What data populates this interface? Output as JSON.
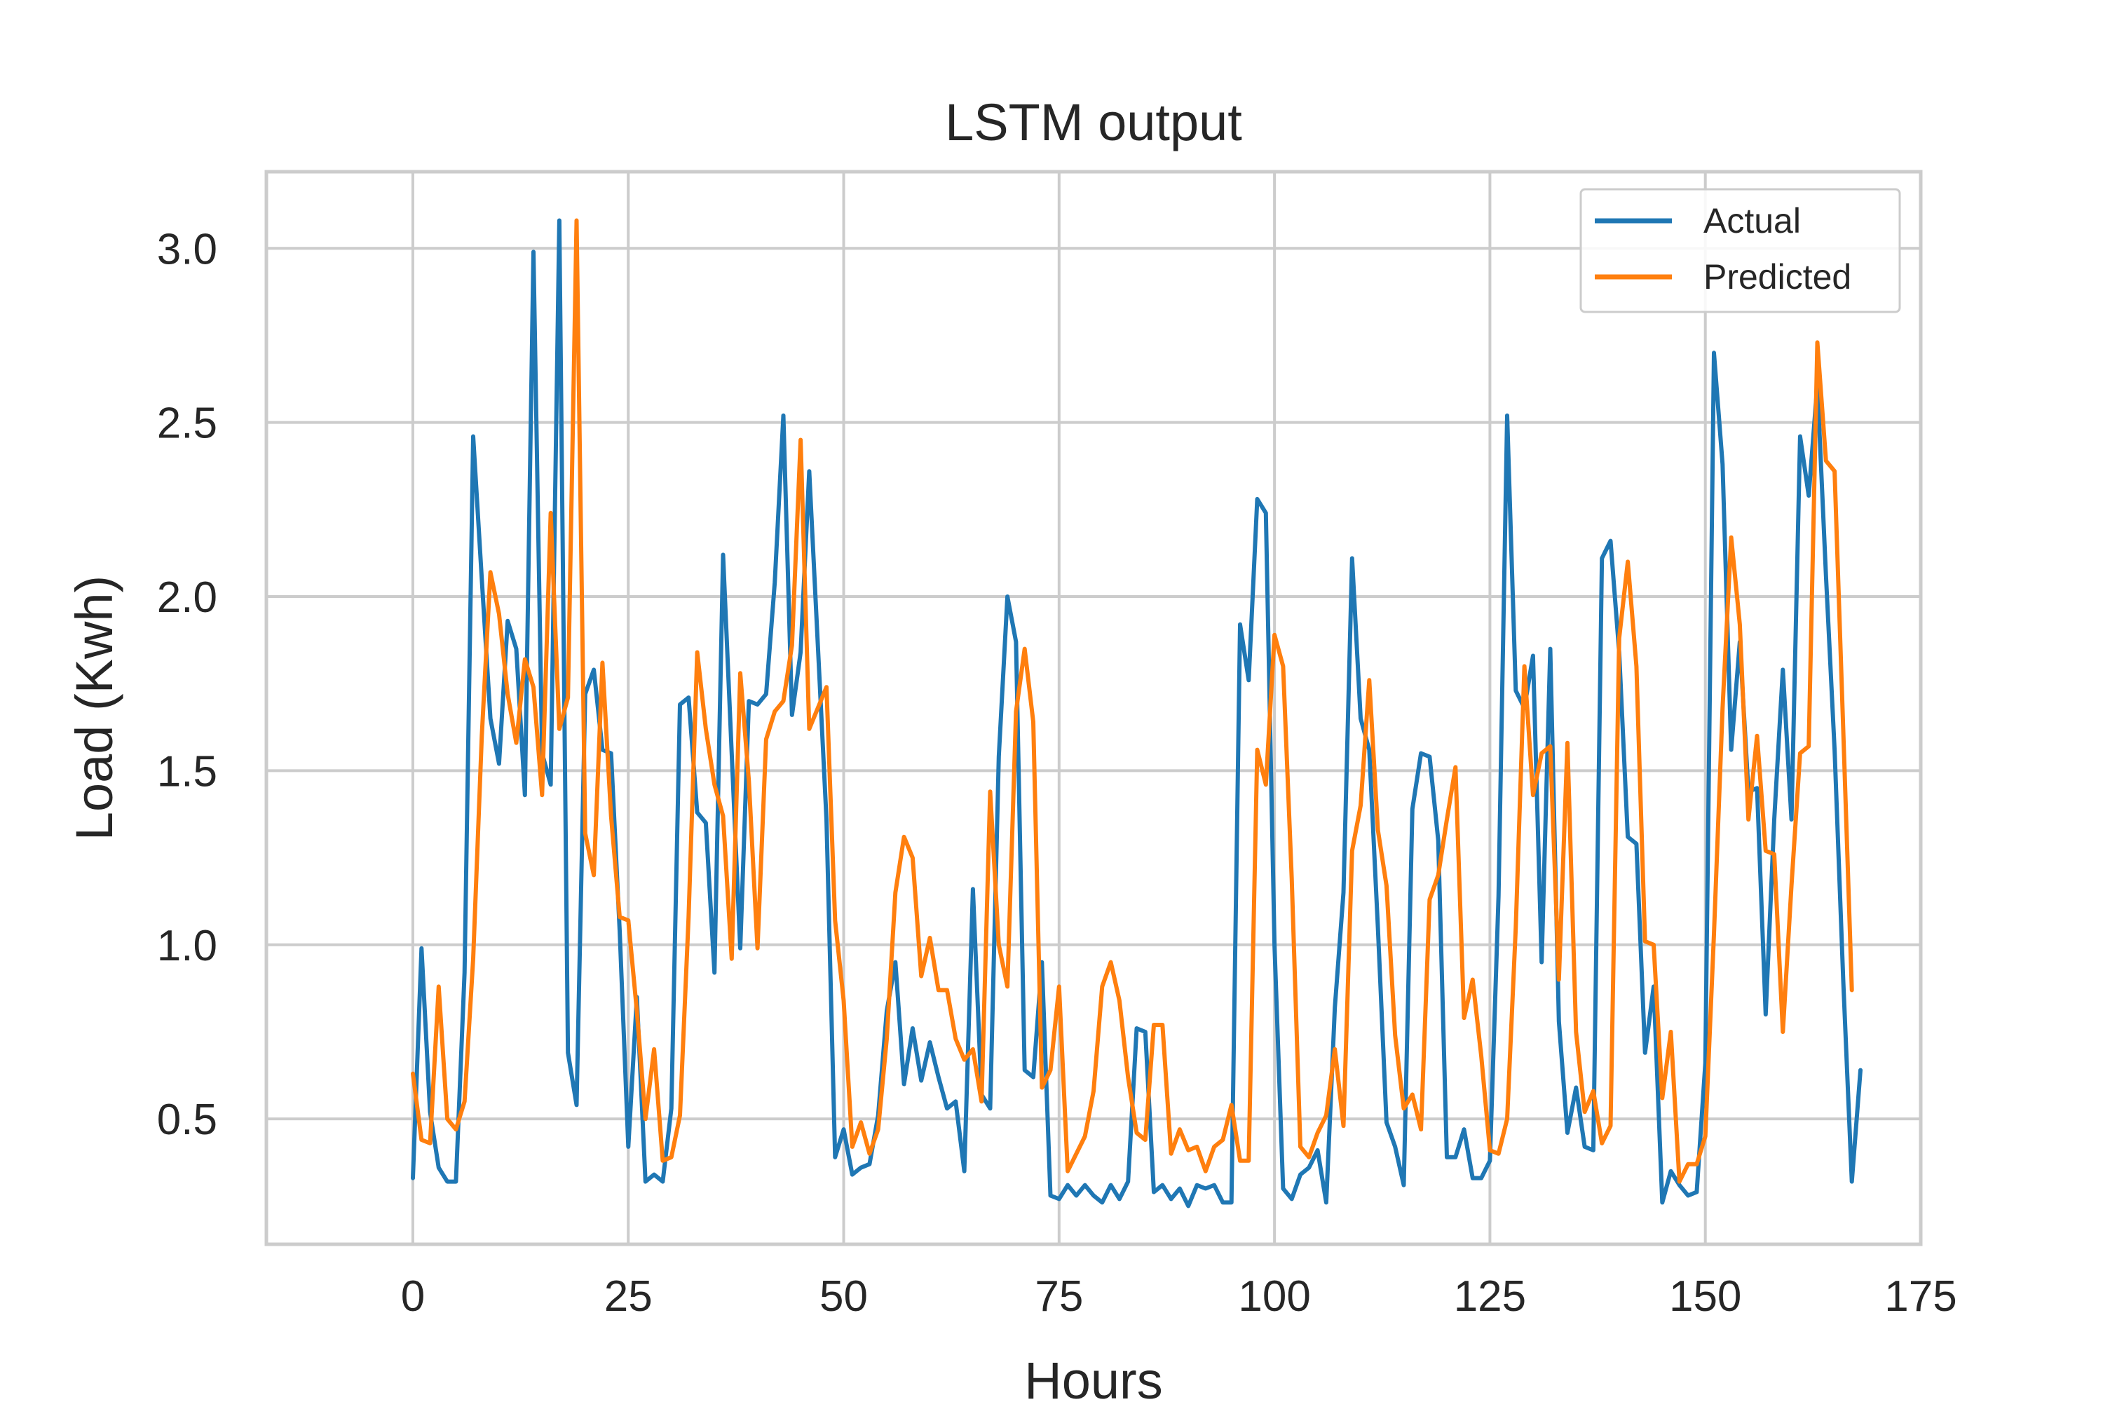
{
  "chart_data": {
    "type": "line",
    "title": "LSTM output",
    "xlabel": "Hours",
    "ylabel": "Load (Kwh)",
    "xlim": [
      -17,
      175
    ],
    "ylim": [
      0.14,
      3.22
    ],
    "xticks": [
      0,
      25,
      50,
      75,
      100,
      125,
      150,
      175
    ],
    "yticks": [
      0.5,
      1.0,
      1.5,
      2.0,
      2.5,
      3.0
    ],
    "xtick_labels": [
      "0",
      "25",
      "50",
      "75",
      "100",
      "125",
      "150",
      "175"
    ],
    "ytick_labels": [
      "0.5",
      "1.0",
      "1.5",
      "2.0",
      "2.5",
      "3.0"
    ],
    "grid": true,
    "legend_position": "top-right",
    "x_start": 0,
    "series": [
      {
        "name": "Actual",
        "color": "#1f77b4",
        "values": [
          0.33,
          0.99,
          0.52,
          0.36,
          0.32,
          0.32,
          0.92,
          2.46,
          2.05,
          1.65,
          1.52,
          1.93,
          1.85,
          1.43,
          2.99,
          1.55,
          1.46,
          3.08,
          0.69,
          0.54,
          1.72,
          1.79,
          1.56,
          1.55,
          1.04,
          0.42,
          0.85,
          0.32,
          0.34,
          0.32,
          0.53,
          1.69,
          1.71,
          1.38,
          1.35,
          0.92,
          2.12,
          1.55,
          0.99,
          1.7,
          1.69,
          1.72,
          2.04,
          2.52,
          1.66,
          1.84,
          2.36,
          1.86,
          1.36,
          0.39,
          0.47,
          0.34,
          0.36,
          0.37,
          0.51,
          0.81,
          0.95,
          0.6,
          0.76,
          0.61,
          0.72,
          0.62,
          0.53,
          0.55,
          0.35,
          1.16,
          0.57,
          0.53,
          1.54,
          2.0,
          1.87,
          0.64,
          0.62,
          0.95,
          0.28,
          0.27,
          0.31,
          0.28,
          0.31,
          0.28,
          0.26,
          0.31,
          0.27,
          0.32,
          0.76,
          0.75,
          0.29,
          0.31,
          0.27,
          0.3,
          0.25,
          0.31,
          0.3,
          0.31,
          0.26,
          0.26,
          1.92,
          1.76,
          2.28,
          2.24,
          1.0,
          0.3,
          0.27,
          0.34,
          0.36,
          0.41,
          0.26,
          0.82,
          1.15,
          2.11,
          1.65,
          1.56,
          1.05,
          0.49,
          0.42,
          0.31,
          1.39,
          1.55,
          1.54,
          1.3,
          0.39,
          0.39,
          0.47,
          0.33,
          0.33,
          0.38,
          1.14,
          2.52,
          1.73,
          1.68,
          1.83,
          0.95,
          1.85,
          0.78,
          0.46,
          0.59,
          0.42,
          0.41,
          2.11,
          2.16,
          1.84,
          1.31,
          1.29,
          0.69,
          0.88,
          0.26,
          0.35,
          0.31,
          0.28,
          0.29,
          0.66,
          2.7,
          2.38,
          1.56,
          1.87,
          1.44,
          1.45,
          0.8,
          1.36,
          1.79,
          1.36,
          2.46,
          2.29,
          2.61,
          2.06,
          1.56,
          0.9,
          0.32,
          0.64
        ]
      },
      {
        "name": "Predicted",
        "color": "#ff7f0e",
        "values": [
          0.63,
          0.44,
          0.43,
          0.88,
          0.5,
          0.47,
          0.55,
          0.96,
          1.6,
          2.07,
          1.95,
          1.72,
          1.58,
          1.82,
          1.74,
          1.43,
          2.24,
          1.62,
          1.71,
          3.08,
          1.32,
          1.2,
          1.81,
          1.37,
          1.08,
          1.07,
          0.81,
          0.5,
          0.7,
          0.38,
          0.39,
          0.51,
          1.08,
          1.84,
          1.62,
          1.46,
          1.37,
          0.96,
          1.78,
          1.47,
          0.99,
          1.59,
          1.67,
          1.7,
          1.86,
          2.45,
          1.62,
          1.68,
          1.74,
          1.07,
          0.84,
          0.42,
          0.49,
          0.4,
          0.47,
          0.73,
          1.15,
          1.31,
          1.25,
          0.91,
          1.02,
          0.87,
          0.87,
          0.73,
          0.67,
          0.7,
          0.55,
          1.44,
          1.0,
          0.88,
          1.67,
          1.85,
          1.64,
          0.59,
          0.64,
          0.88,
          0.35,
          0.4,
          0.45,
          0.58,
          0.88,
          0.95,
          0.84,
          0.62,
          0.46,
          0.44,
          0.77,
          0.77,
          0.4,
          0.47,
          0.41,
          0.42,
          0.35,
          0.42,
          0.44,
          0.54,
          0.38,
          0.38,
          1.56,
          1.46,
          1.89,
          1.8,
          1.19,
          0.42,
          0.39,
          0.46,
          0.51,
          0.7,
          0.48,
          1.27,
          1.4,
          1.76,
          1.33,
          1.17,
          0.74,
          0.53,
          0.57,
          0.47,
          1.13,
          1.2,
          1.36,
          1.51,
          0.79,
          0.9,
          0.68,
          0.41,
          0.4,
          0.5,
          1.05,
          1.8,
          1.43,
          1.55,
          1.57,
          0.9,
          1.58,
          0.75,
          0.52,
          0.58,
          0.43,
          0.48,
          1.88,
          2.1,
          1.8,
          1.01,
          1.0,
          0.56,
          0.75,
          0.32,
          0.37,
          0.37,
          0.45,
          1.03,
          1.68,
          2.17,
          1.92,
          1.36,
          1.6,
          1.27,
          1.26,
          0.75,
          1.17,
          1.55,
          1.57,
          2.73,
          2.39,
          2.36,
          1.62,
          0.87
        ]
      }
    ]
  }
}
